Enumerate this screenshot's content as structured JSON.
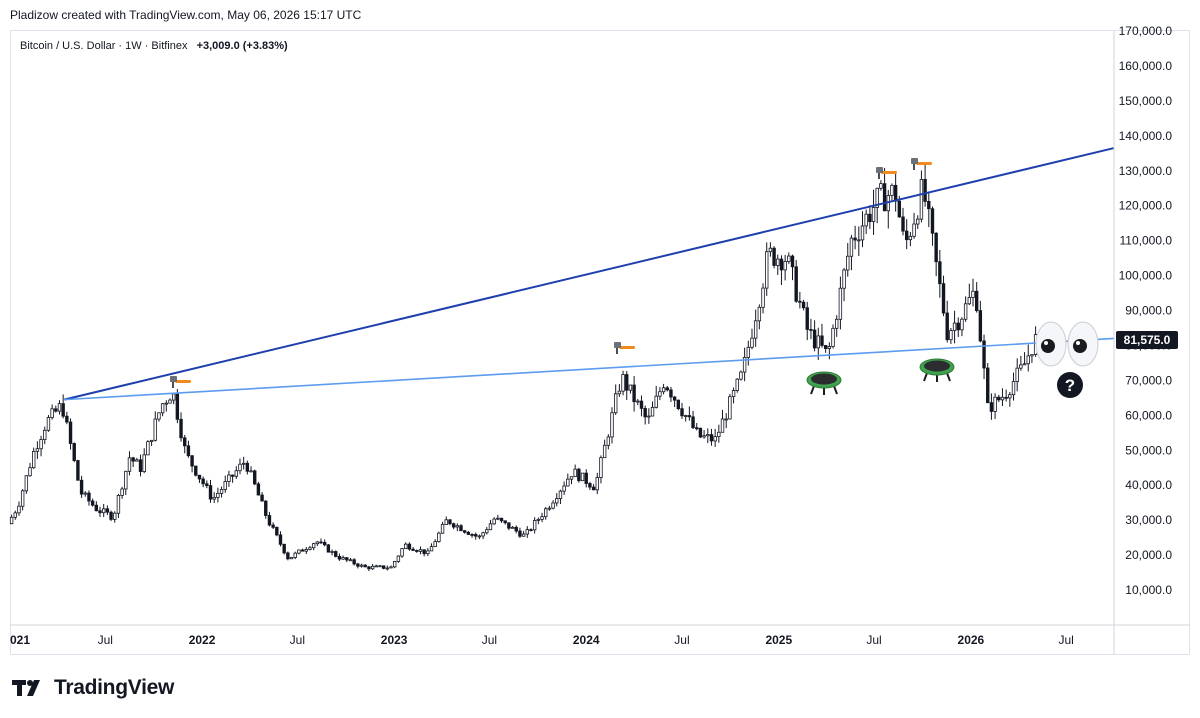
{
  "header": {
    "caption": "Pladizow created with TradingView.com, May 06, 2026 15:17 UTC"
  },
  "legend": {
    "symbol": "Bitcoin / U.S. Dollar · 1W · Bitfinex",
    "change": "+3,009.0 (+3.83%)"
  },
  "brand": {
    "name": "TradingView",
    "logo": "tradingview-logo-icon"
  },
  "price_tag": {
    "label": "81,575.0",
    "color": "#131722"
  },
  "annotations": {
    "hammers": [
      "hammer-icon",
      "hammer-icon",
      "hammer-icon",
      "hammer-icon"
    ],
    "trampolines": [
      "trampoline-icon",
      "trampoline-icon"
    ],
    "eyes": "eyes-icon",
    "question": "question-icon"
  },
  "chart_data": {
    "type": "candlestick",
    "title": "",
    "xlabel": "",
    "ylabel": "",
    "ylim": [
      0,
      170000
    ],
    "y_ticks": [
      "170,000.0",
      "160,000.0",
      "150,000.0",
      "140,000.0",
      "130,000.0",
      "120,000.0",
      "110,000.0",
      "100,000.0",
      "90,000.0",
      "80,000.0",
      "70,000.0",
      "60,000.0",
      "50,000.0",
      "40,000.0",
      "30,000.0",
      "20,000.0",
      "10,000.0"
    ],
    "x_ticks": [
      {
        "label": "021",
        "date": "2021-01-01",
        "bold": true
      },
      {
        "label": "Jul",
        "date": "2021-07-01",
        "bold": false
      },
      {
        "label": "2022",
        "date": "2022-01-01",
        "bold": true
      },
      {
        "label": "Jul",
        "date": "2022-07-01",
        "bold": false
      },
      {
        "label": "2023",
        "date": "2023-01-01",
        "bold": true
      },
      {
        "label": "Jul",
        "date": "2023-07-01",
        "bold": false
      },
      {
        "label": "2024",
        "date": "2024-01-01",
        "bold": true
      },
      {
        "label": "Jul",
        "date": "2024-07-01",
        "bold": false
      },
      {
        "label": "2025",
        "date": "2025-01-01",
        "bold": true
      },
      {
        "label": "Jul",
        "date": "2025-07-01",
        "bold": false
      },
      {
        "label": "2026",
        "date": "2026-01-01",
        "bold": true
      },
      {
        "label": "Jul",
        "date": "2026-07-01",
        "bold": false
      }
    ],
    "x_range": [
      "2021-01-01",
      "2026-09-30"
    ],
    "last_price": 81575,
    "price_path": [
      [
        "2021-01-01",
        29000
      ],
      [
        "2021-01-20",
        34000
      ],
      [
        "2021-02-20",
        50000
      ],
      [
        "2021-03-15",
        58000
      ],
      [
        "2021-04-14",
        63000
      ],
      [
        "2021-05-19",
        38000
      ],
      [
        "2021-06-20",
        33000
      ],
      [
        "2021-07-20",
        31000
      ],
      [
        "2021-08-20",
        48000
      ],
      [
        "2021-09-10",
        45000
      ],
      [
        "2021-10-20",
        63000
      ],
      [
        "2021-11-10",
        67000
      ],
      [
        "2021-12-05",
        49000
      ],
      [
        "2022-01-25",
        36000
      ],
      [
        "2022-03-28",
        47000
      ],
      [
        "2022-05-10",
        30000
      ],
      [
        "2022-06-18",
        19000
      ],
      [
        "2022-08-10",
        24000
      ],
      [
        "2022-09-20",
        19500
      ],
      [
        "2022-11-10",
        16500
      ],
      [
        "2022-12-30",
        16500
      ],
      [
        "2023-01-25",
        23000
      ],
      [
        "2023-03-10",
        20500
      ],
      [
        "2023-04-15",
        30000
      ],
      [
        "2023-06-15",
        25000
      ],
      [
        "2023-07-15",
        30500
      ],
      [
        "2023-09-10",
        25500
      ],
      [
        "2023-10-25",
        34000
      ],
      [
        "2023-12-10",
        44000
      ],
      [
        "2024-01-22",
        39500
      ],
      [
        "2024-03-12",
        71000
      ],
      [
        "2024-05-01",
        58000
      ],
      [
        "2024-06-01",
        70000
      ],
      [
        "2024-08-05",
        54000
      ],
      [
        "2024-09-06",
        53000
      ],
      [
        "2024-10-28",
        72000
      ],
      [
        "2024-12-16",
        106000
      ],
      [
        "2025-01-20",
        105000
      ],
      [
        "2025-03-01",
        84000
      ],
      [
        "2025-04-08",
        77000
      ],
      [
        "2025-05-22",
        110000
      ],
      [
        "2025-07-14",
        122000
      ],
      [
        "2025-08-14",
        124000
      ],
      [
        "2025-09-01",
        108000
      ],
      [
        "2025-10-06",
        125000
      ],
      [
        "2025-11-21",
        84000
      ],
      [
        "2025-12-15",
        88000
      ],
      [
        "2026-01-14",
        96000
      ],
      [
        "2026-02-06",
        62000
      ],
      [
        "2026-03-10",
        66000
      ],
      [
        "2026-04-15",
        74000
      ],
      [
        "2026-05-06",
        81575
      ]
    ],
    "trendlines": [
      {
        "name": "resistance",
        "color": "#1e3fae",
        "from": [
          "2021-04-14",
          64500
        ],
        "to": [
          "2026-09-30",
          136500
        ]
      },
      {
        "name": "support",
        "color": "#5b9cf0",
        "from": [
          "2021-04-14",
          64500
        ],
        "to": [
          "2026-09-30",
          82000
        ]
      }
    ],
    "colors": {
      "up": "#131722",
      "down": "#131722"
    }
  }
}
